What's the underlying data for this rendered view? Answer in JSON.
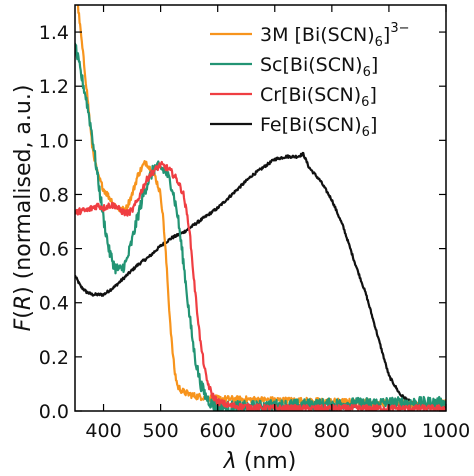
{
  "chart_data": {
    "type": "line",
    "xlabel_symbol": "λ",
    "xlabel_unit": "(nm)",
    "ylabel_func": "F",
    "ylabel_arg": "R",
    "ylabel_rest": "(normalised, a.u.)",
    "xlim": [
      350,
      1000
    ],
    "ylim": [
      0,
      1.5
    ],
    "xticks": [
      400,
      500,
      600,
      700,
      800,
      900,
      1000
    ],
    "yticks": [
      0.0,
      0.2,
      0.4,
      0.6,
      0.8,
      1.0,
      1.2,
      1.4
    ],
    "ytick_labels": [
      "0.0",
      "0.2",
      "0.4",
      "0.6",
      "0.8",
      "1.0",
      "1.2",
      "1.4"
    ],
    "grid": false,
    "legend_position": "top-right",
    "series": [
      {
        "name": "3M [Bi(SCN)6]3−",
        "legend": {
          "main": "3M [Bi(SCN)",
          "sub": "6",
          "close": "]",
          "sup": "3−"
        },
        "color": "#f7941d",
        "noise": 0.012,
        "x": [
          350,
          360,
          370,
          380,
          390,
          400,
          410,
          420,
          430,
          440,
          450,
          460,
          470,
          475,
          480,
          490,
          500,
          505,
          510,
          515,
          520,
          525,
          530,
          540,
          560,
          600,
          700,
          800,
          900,
          960,
          1000
        ],
        "y": [
          1.6,
          1.4,
          1.2,
          0.98,
          0.87,
          0.82,
          0.79,
          0.76,
          0.74,
          0.75,
          0.8,
          0.87,
          0.91,
          0.92,
          0.9,
          0.87,
          0.8,
          0.7,
          0.55,
          0.38,
          0.24,
          0.14,
          0.09,
          0.07,
          0.055,
          0.045,
          0.04,
          0.035,
          0.03,
          0.025,
          0.03
        ]
      },
      {
        "name": "Sc[Bi(SCN)6]",
        "legend": {
          "main": "Sc[Bi(SCN)",
          "sub": "6",
          "close": "]",
          "sup": ""
        },
        "color": "#239474",
        "noise": 0.022,
        "x": [
          350,
          360,
          370,
          380,
          390,
          400,
          410,
          420,
          430,
          440,
          450,
          460,
          470,
          480,
          490,
          500,
          510,
          520,
          530,
          540,
          550,
          560,
          570,
          580,
          590,
          600,
          650,
          700,
          800,
          900,
          1000
        ],
        "y": [
          1.35,
          1.25,
          1.15,
          1.02,
          0.86,
          0.71,
          0.59,
          0.53,
          0.52,
          0.55,
          0.63,
          0.72,
          0.8,
          0.86,
          0.9,
          0.9,
          0.88,
          0.83,
          0.72,
          0.55,
          0.36,
          0.2,
          0.1,
          0.05,
          0.025,
          0.015,
          0.015,
          0.02,
          0.025,
          0.03,
          0.03
        ]
      },
      {
        "name": "Cr[Bi(SCN)6]",
        "legend": {
          "main": "Cr[Bi(SCN)",
          "sub": "6",
          "close": "]",
          "sup": ""
        },
        "color": "#ef3e42",
        "noise": 0.012,
        "x": [
          350,
          360,
          370,
          380,
          390,
          400,
          410,
          420,
          430,
          440,
          450,
          460,
          470,
          480,
          490,
          500,
          510,
          520,
          530,
          540,
          550,
          560,
          570,
          580,
          590,
          600,
          620,
          650,
          700,
          1000
        ],
        "y": [
          0.73,
          0.74,
          0.74,
          0.75,
          0.76,
          0.75,
          0.76,
          0.76,
          0.74,
          0.73,
          0.74,
          0.78,
          0.83,
          0.87,
          0.89,
          0.91,
          0.9,
          0.88,
          0.85,
          0.8,
          0.68,
          0.45,
          0.25,
          0.12,
          0.06,
          0.035,
          0.02,
          0.015,
          0.01,
          0.01
        ]
      },
      {
        "name": "Fe[Bi(SCN)6]",
        "legend": {
          "main": "Fe[Bi(SCN)",
          "sub": "6",
          "close": "]",
          "sup": ""
        },
        "color": "#111111",
        "noise": 0.005,
        "x": [
          350,
          360,
          370,
          380,
          400,
          420,
          440,
          460,
          480,
          500,
          520,
          540,
          560,
          580,
          600,
          620,
          640,
          660,
          680,
          700,
          720,
          740,
          750,
          760,
          780,
          800,
          820,
          840,
          860,
          880,
          900,
          920,
          940,
          960,
          980,
          1000
        ],
        "y": [
          0.5,
          0.46,
          0.44,
          0.43,
          0.43,
          0.46,
          0.5,
          0.54,
          0.57,
          0.61,
          0.64,
          0.66,
          0.69,
          0.72,
          0.75,
          0.79,
          0.83,
          0.87,
          0.9,
          0.93,
          0.94,
          0.94,
          0.95,
          0.9,
          0.85,
          0.78,
          0.68,
          0.55,
          0.43,
          0.28,
          0.13,
          0.06,
          0.03,
          0.02,
          0.015,
          0.01
        ]
      }
    ]
  }
}
